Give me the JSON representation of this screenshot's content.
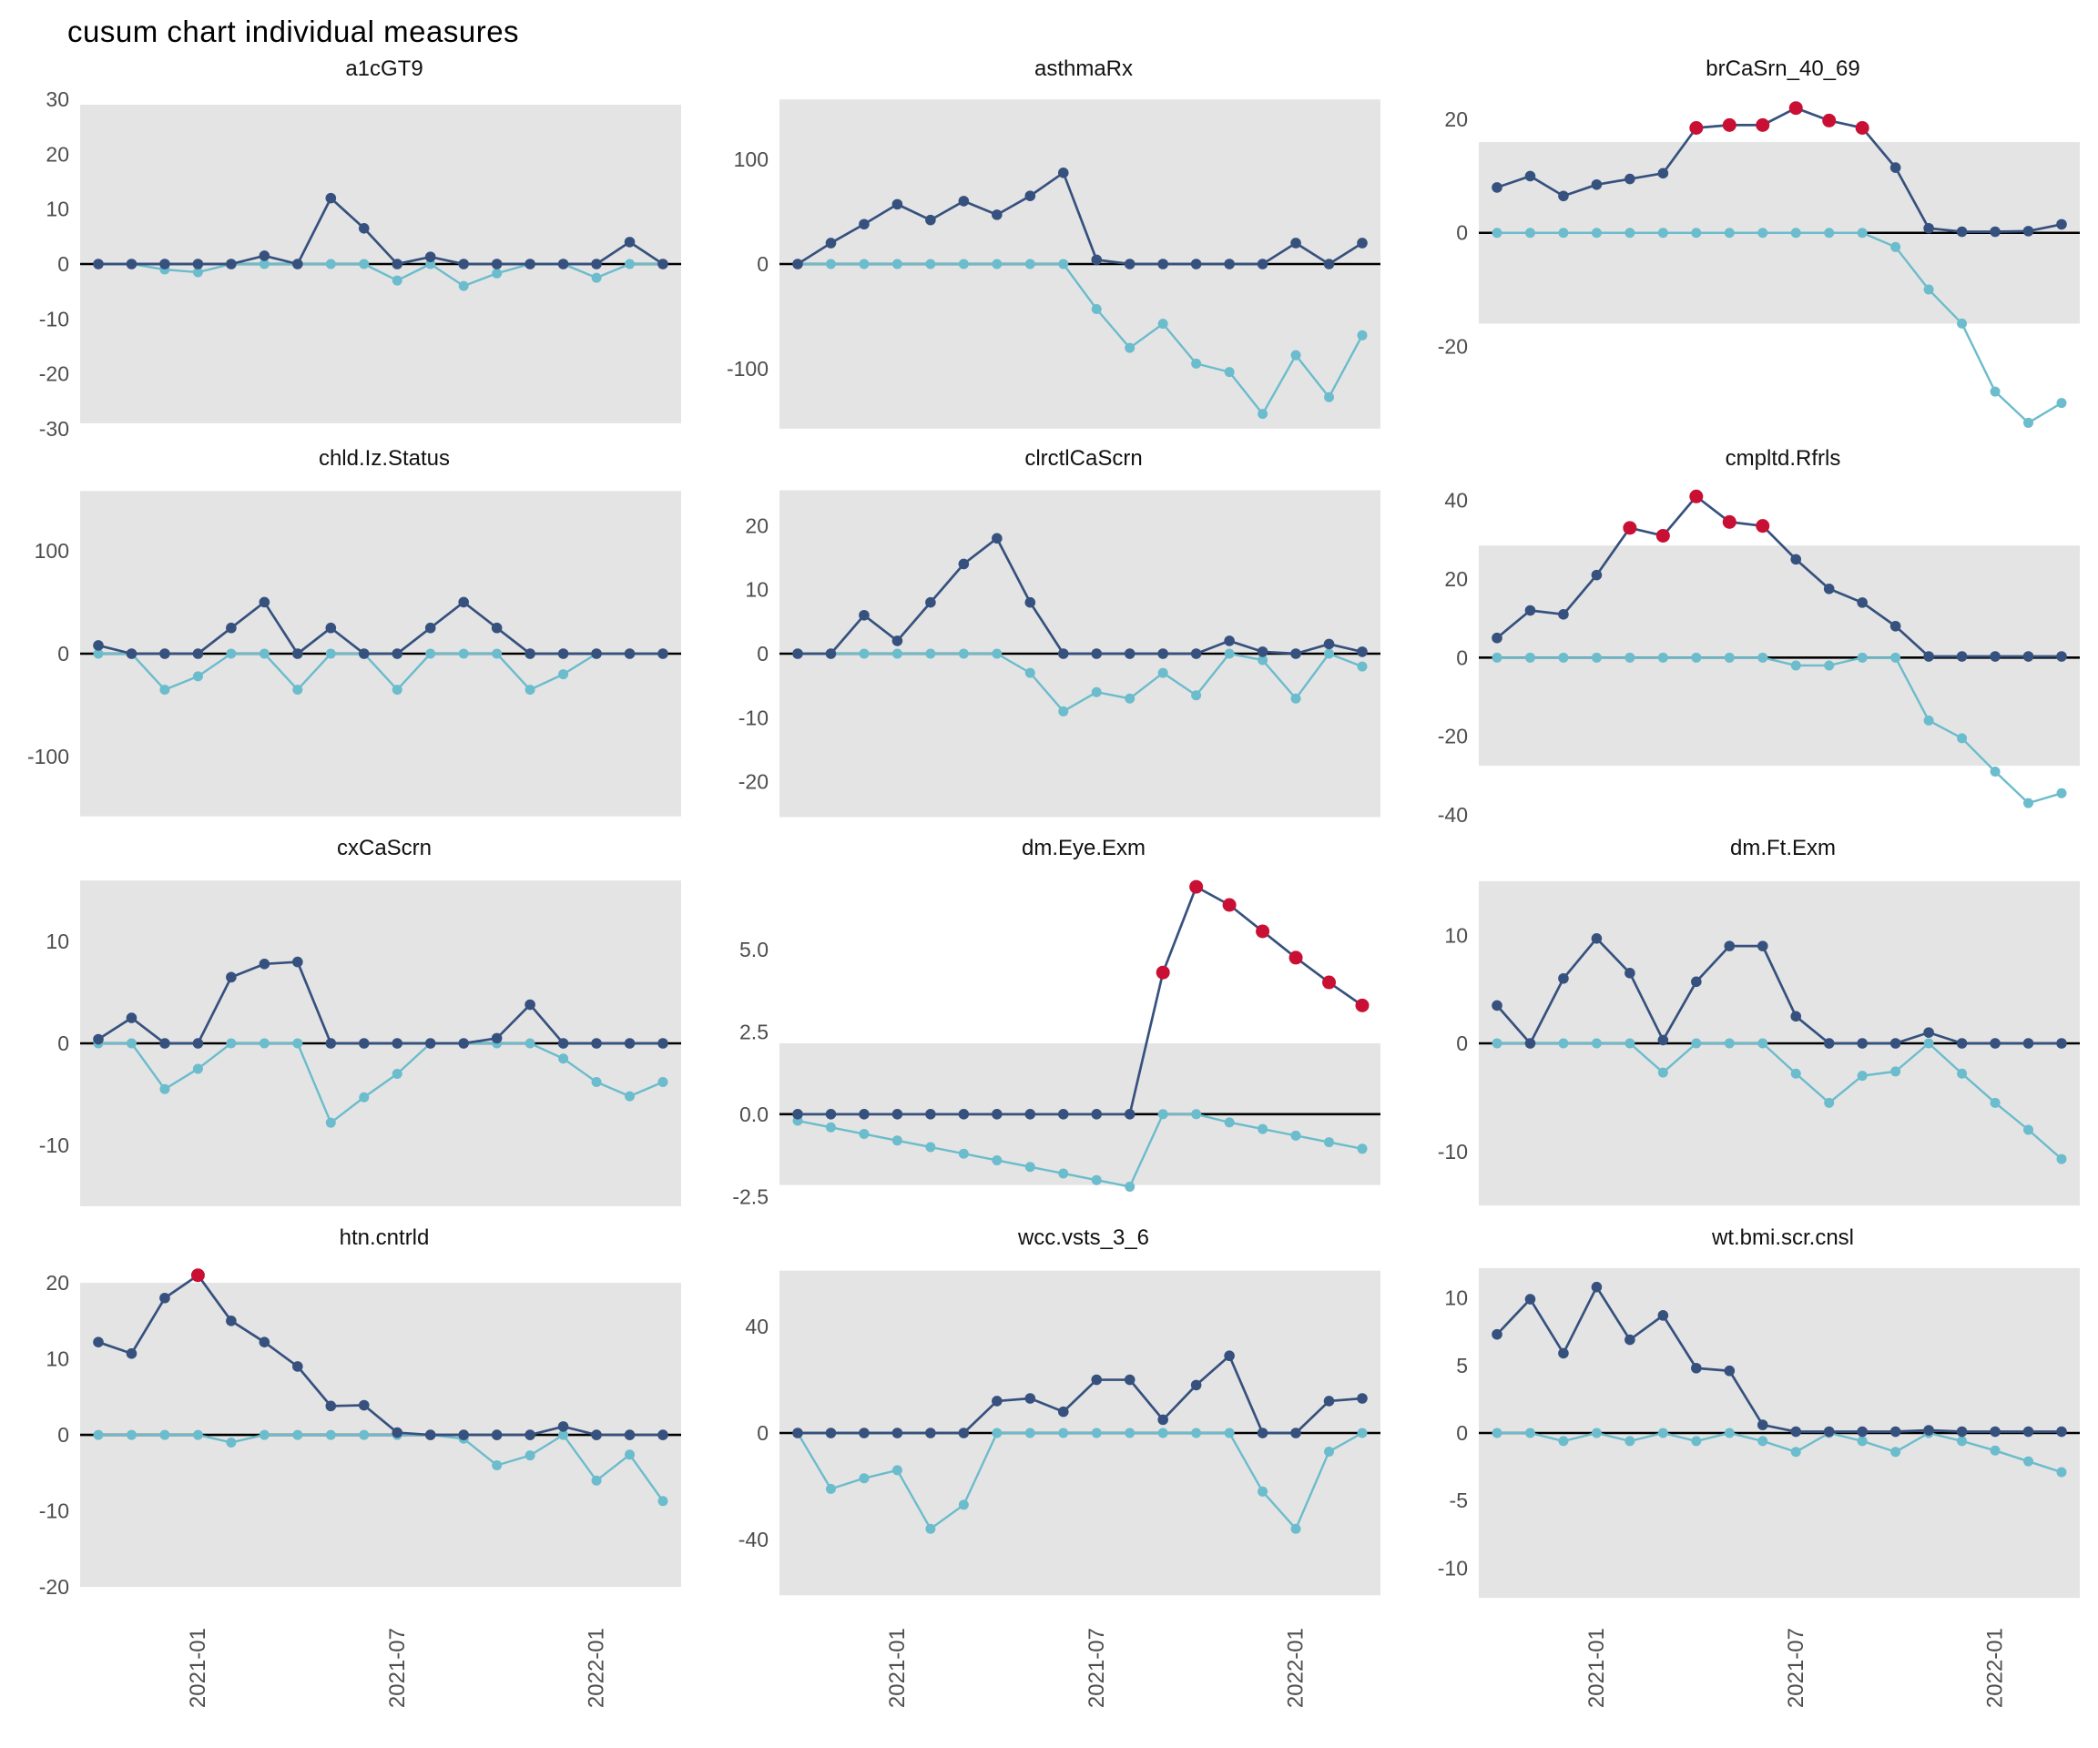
{
  "title": "cusum chart  individual measures",
  "colors": {
    "upper_series": "#36517E",
    "lower_series": "#6BBCCC",
    "signal_point": "#C90F33",
    "control_band": "#E4E4E4",
    "zero_line": "#000000",
    "axis_text": "#4d4d4d",
    "panel_title_text": "#111111"
  },
  "x_axis": {
    "labels": [
      "2021-01",
      "2021-07",
      "2022-01"
    ],
    "tick_point_indices": [
      3,
      9,
      15
    ],
    "n_points": 18
  },
  "chart_data": [
    {
      "type": "line",
      "title": "a1cGT9",
      "ylim": [
        -31.5,
        31.5
      ],
      "control_band": [
        -29,
        29
      ],
      "yticks": [
        30,
        20,
        10,
        0,
        -10,
        -20,
        -30
      ],
      "ytick_labels": [
        "30",
        "20",
        "10",
        "0",
        "-10",
        "-20",
        "-30"
      ],
      "series": [
        {
          "name": "cusum-upper",
          "color_key": "upper_series",
          "values": [
            0,
            0,
            0,
            0,
            0,
            1.5,
            0,
            12,
            6.5,
            0,
            1.3,
            0,
            0,
            0,
            0,
            0,
            4,
            0
          ],
          "signal_indices": []
        },
        {
          "name": "cusum-lower",
          "color_key": "lower_series",
          "values": [
            0,
            0,
            -1,
            -1.5,
            0,
            0,
            0,
            0,
            0,
            -3,
            0,
            -4,
            -1.7,
            0,
            0,
            -2.5,
            0,
            0
          ],
          "signal_indices": []
        }
      ]
    },
    {
      "type": "line",
      "title": "asthmaRx",
      "ylim": [
        -165,
        165
      ],
      "control_band": [
        -157,
        157
      ],
      "yticks": [
        100,
        0,
        -100
      ],
      "ytick_labels": [
        "100",
        "0",
        "-100"
      ],
      "series": [
        {
          "name": "cusum-upper",
          "color_key": "upper_series",
          "values": [
            0,
            20,
            38,
            57,
            42,
            60,
            47,
            65,
            87,
            4,
            0,
            0,
            0,
            0,
            0,
            20,
            0,
            20
          ],
          "signal_indices": []
        },
        {
          "name": "cusum-lower",
          "color_key": "lower_series",
          "values": [
            0,
            0,
            0,
            0,
            0,
            0,
            0,
            0,
            0,
            -43,
            -80,
            -57,
            -95,
            -103,
            -143,
            -87,
            -127,
            -68
          ],
          "signal_indices": []
        }
      ]
    },
    {
      "type": "line",
      "title": "brCaSrn_40_69",
      "ylim": [
        -36,
        25
      ],
      "control_band": [
        -16,
        16
      ],
      "yticks": [
        20,
        0,
        -20
      ],
      "ytick_labels": [
        "20",
        "0",
        "-20"
      ],
      "series": [
        {
          "name": "cusum-upper",
          "color_key": "upper_series",
          "values": [
            8,
            10,
            6.5,
            8.5,
            9.5,
            10.5,
            18.5,
            19,
            19,
            22,
            19.8,
            18.5,
            11.5,
            0.8,
            0.2,
            0.2,
            0.3,
            1.5
          ],
          "signal_indices": [
            6,
            7,
            8,
            9,
            10,
            11
          ]
        },
        {
          "name": "cusum-lower",
          "color_key": "lower_series",
          "values": [
            0,
            0,
            0,
            0,
            0,
            0,
            0,
            0,
            0,
            0,
            0,
            0,
            -2.5,
            -10,
            -16,
            -28,
            -33.5,
            -30
          ],
          "signal_indices": []
        }
      ]
    },
    {
      "type": "line",
      "title": "chld.Iz.Status",
      "ylim": [
        -168,
        168
      ],
      "control_band": [
        -158,
        158
      ],
      "yticks": [
        100,
        0,
        -100
      ],
      "ytick_labels": [
        "100",
        "0",
        "-100"
      ],
      "series": [
        {
          "name": "cusum-upper",
          "color_key": "upper_series",
          "values": [
            8,
            0,
            0,
            0,
            25,
            50,
            0,
            25,
            0,
            0,
            25,
            50,
            25,
            0,
            0,
            0,
            0,
            0
          ],
          "signal_indices": []
        },
        {
          "name": "cusum-lower",
          "color_key": "lower_series",
          "values": [
            0,
            0,
            -35,
            -22,
            0,
            0,
            -35,
            0,
            0,
            -35,
            0,
            0,
            0,
            -35,
            -20,
            0,
            0,
            0
          ],
          "signal_indices": []
        }
      ]
    },
    {
      "type": "line",
      "title": "clrctlCaScrn",
      "ylim": [
        -27,
        27
      ],
      "control_band": [
        -25.5,
        25.5
      ],
      "yticks": [
        20,
        10,
        0,
        -10,
        -20
      ],
      "ytick_labels": [
        "20",
        "10",
        "0",
        "-10",
        "-20"
      ],
      "series": [
        {
          "name": "cusum-upper",
          "color_key": "upper_series",
          "values": [
            0,
            0,
            6,
            2,
            8,
            14,
            18,
            8,
            0,
            0,
            0,
            0,
            0,
            2,
            0.3,
            0,
            1.5,
            0.3
          ],
          "signal_indices": []
        },
        {
          "name": "cusum-lower",
          "color_key": "lower_series",
          "values": [
            0,
            0,
            0,
            0,
            0,
            0,
            0,
            -3,
            -9,
            -6,
            -7,
            -3,
            -6.5,
            0,
            -1,
            -7,
            0,
            -2
          ],
          "signal_indices": []
        }
      ]
    },
    {
      "type": "line",
      "title": "cmpltd.Rfrls",
      "ylim": [
        -43,
        45
      ],
      "control_band": [
        -27.5,
        28.5
      ],
      "yticks": [
        40,
        20,
        0,
        -20,
        -40
      ],
      "ytick_labels": [
        "40",
        "20",
        "0",
        "-20",
        "-40"
      ],
      "series": [
        {
          "name": "cusum-upper",
          "color_key": "upper_series",
          "values": [
            5,
            12,
            11,
            21,
            33,
            31,
            41,
            34.5,
            33.5,
            25,
            17.5,
            14,
            8,
            0.3,
            0.3,
            0.3,
            0.3,
            0.3
          ],
          "signal_indices": [
            4,
            5,
            6,
            7,
            8
          ]
        },
        {
          "name": "cusum-lower",
          "color_key": "lower_series",
          "values": [
            0,
            0,
            0,
            0,
            0,
            0,
            0,
            0,
            0,
            -2,
            -2,
            0,
            0,
            -16,
            -20.5,
            -29,
            -37,
            -34.5
          ],
          "signal_indices": []
        }
      ]
    },
    {
      "type": "line",
      "title": "cxCaScrn",
      "ylim": [
        -17,
        17
      ],
      "control_band": [
        -16,
        16
      ],
      "yticks": [
        10,
        0,
        -10
      ],
      "ytick_labels": [
        "10",
        "0",
        "-10"
      ],
      "series": [
        {
          "name": "cusum-upper",
          "color_key": "upper_series",
          "values": [
            0.4,
            2.5,
            0,
            0,
            6.5,
            7.8,
            8,
            0,
            0,
            0,
            0,
            0,
            0.5,
            3.8,
            0,
            0,
            0,
            0
          ],
          "signal_indices": []
        },
        {
          "name": "cusum-lower",
          "color_key": "lower_series",
          "values": [
            0,
            0,
            -4.5,
            -2.5,
            0,
            0,
            0,
            -7.8,
            -5.3,
            -3,
            0,
            0,
            0,
            0,
            -1.5,
            -3.8,
            -5.2,
            -3.8
          ],
          "signal_indices": []
        }
      ]
    },
    {
      "type": "line",
      "title": "dm.Eye.Exm",
      "ylim": [
        -3.1,
        7.4
      ],
      "control_band": [
        -2.15,
        2.15
      ],
      "yticks": [
        5.0,
        2.5,
        0.0,
        -2.5
      ],
      "ytick_labels": [
        "5.0",
        "2.5",
        "0.0",
        "-2.5"
      ],
      "series": [
        {
          "name": "cusum-upper",
          "color_key": "upper_series",
          "values": [
            0,
            0,
            0,
            0,
            0,
            0,
            0,
            0,
            0,
            0,
            0,
            4.3,
            6.9,
            6.35,
            5.55,
            4.75,
            4.0,
            3.3
          ],
          "signal_indices": [
            11,
            12,
            13,
            14,
            15,
            16,
            17
          ]
        },
        {
          "name": "cusum-lower",
          "color_key": "lower_series",
          "values": [
            -0.2,
            -0.4,
            -0.6,
            -0.8,
            -1.0,
            -1.2,
            -1.4,
            -1.6,
            -1.8,
            -2.0,
            -2.2,
            0,
            0,
            -0.25,
            -0.45,
            -0.65,
            -0.85,
            -1.05
          ],
          "signal_indices": []
        }
      ]
    },
    {
      "type": "line",
      "title": "dm.Ft.Exm",
      "ylim": [
        -16,
        16
      ],
      "control_band": [
        -15,
        15
      ],
      "yticks": [
        10,
        0,
        -10
      ],
      "ytick_labels": [
        "10",
        "0",
        "-10"
      ],
      "series": [
        {
          "name": "cusum-upper",
          "color_key": "upper_series",
          "values": [
            3.5,
            0,
            6,
            9.7,
            6.5,
            0.3,
            5.7,
            9,
            9,
            2.5,
            0,
            0,
            0,
            1,
            0,
            0,
            0,
            0
          ],
          "signal_indices": []
        },
        {
          "name": "cusum-lower",
          "color_key": "lower_series",
          "values": [
            0,
            0,
            0,
            0,
            0,
            -2.7,
            0,
            0,
            0,
            -2.8,
            -5.5,
            -3.0,
            -2.6,
            0,
            -2.8,
            -5.5,
            -8,
            -10.7
          ],
          "signal_indices": []
        }
      ]
    },
    {
      "type": "line",
      "title": "htn.cntrld",
      "ylim": [
        -22.5,
        23
      ],
      "control_band": [
        -20,
        20
      ],
      "yticks": [
        20,
        10,
        0,
        -10,
        -20
      ],
      "ytick_labels": [
        "20",
        "10",
        "0",
        "-10",
        "-20"
      ],
      "series": [
        {
          "name": "cusum-upper",
          "color_key": "upper_series",
          "values": [
            12.2,
            10.7,
            18,
            21,
            15,
            12.2,
            9,
            3.8,
            3.9,
            0.3,
            0,
            0,
            0,
            0,
            1.1,
            0,
            0,
            0
          ],
          "signal_indices": [
            3
          ]
        },
        {
          "name": "cusum-lower",
          "color_key": "lower_series",
          "values": [
            0,
            0,
            0,
            0,
            -1,
            0,
            0,
            0,
            0,
            0,
            0,
            -0.5,
            -4,
            -2.7,
            0,
            -6,
            -2.6,
            -8.7
          ],
          "signal_indices": []
        }
      ]
    },
    {
      "type": "line",
      "title": "wcc.vsts_3_6",
      "ylim": [
        -65,
        65
      ],
      "control_band": [
        -61,
        61
      ],
      "yticks": [
        40,
        0,
        -40
      ],
      "ytick_labels": [
        "40",
        "0",
        "-40"
      ],
      "series": [
        {
          "name": "cusum-upper",
          "color_key": "upper_series",
          "values": [
            0,
            0,
            0,
            0,
            0,
            0,
            12,
            13,
            8,
            20,
            20,
            5,
            18,
            29,
            0,
            0,
            12,
            13
          ],
          "signal_indices": []
        },
        {
          "name": "cusum-lower",
          "color_key": "lower_series",
          "values": [
            0,
            -21,
            -17,
            -14,
            -36,
            -27,
            0,
            0,
            0,
            0,
            0,
            0,
            0,
            0,
            -22,
            -36,
            -7,
            0
          ],
          "signal_indices": []
        }
      ]
    },
    {
      "type": "line",
      "title": "wt.bmi.scr.cnsl",
      "ylim": [
        -12.8,
        12.8
      ],
      "control_band": [
        -12.2,
        12.2
      ],
      "yticks": [
        10,
        5,
        0,
        -5,
        -10
      ],
      "ytick_labels": [
        "10",
        "5",
        "0",
        "-5",
        "-10"
      ],
      "series": [
        {
          "name": "cusum-upper",
          "color_key": "upper_series",
          "values": [
            7.3,
            9.9,
            5.9,
            10.8,
            6.9,
            8.7,
            4.8,
            4.6,
            0.6,
            0.1,
            0.1,
            0.1,
            0.1,
            0.2,
            0.1,
            0.1,
            0.1,
            0.1
          ],
          "signal_indices": []
        },
        {
          "name": "cusum-lower",
          "color_key": "lower_series",
          "values": [
            0,
            0,
            -0.6,
            0,
            -0.6,
            0,
            -0.6,
            0,
            -0.6,
            -1.4,
            0,
            -0.6,
            -1.4,
            0,
            -0.6,
            -1.3,
            -2.1,
            -2.9
          ],
          "signal_indices": []
        }
      ]
    }
  ]
}
